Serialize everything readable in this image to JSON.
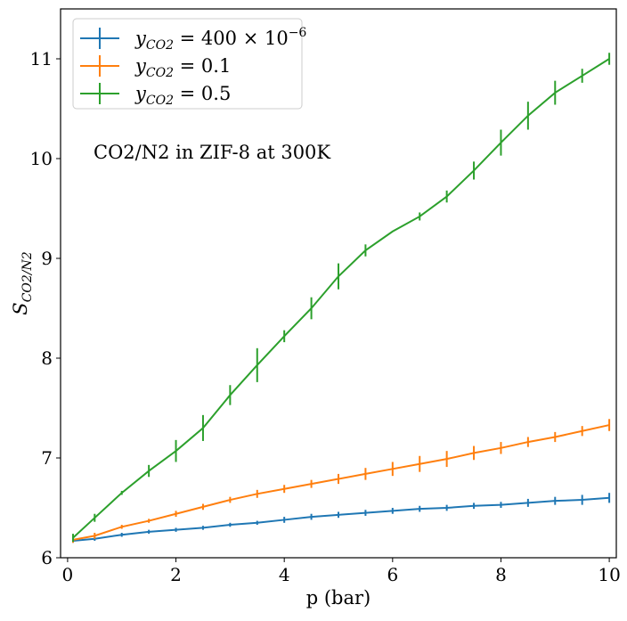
{
  "chart_data": {
    "type": "line",
    "title": "",
    "annotation": "CO2/N2 in ZIF-8 at 300K",
    "xlabel": "p (bar)",
    "ylabel_main": "S",
    "ylabel_sub": "CO2/N2",
    "xlim": [
      -0.13,
      10.13
    ],
    "ylim": [
      6,
      11.5
    ],
    "xticks": [
      0,
      2,
      4,
      6,
      8,
      10
    ],
    "yticks": [
      6,
      7,
      8,
      9,
      10,
      11
    ],
    "grid": false,
    "legend_position": "top-left",
    "x": [
      0.1,
      0.5,
      1,
      1.5,
      2,
      2.5,
      3,
      3.5,
      4,
      4.5,
      5,
      5.5,
      6,
      6.5,
      7,
      7.5,
      8,
      8.5,
      9,
      9.5,
      10
    ],
    "series": [
      {
        "name_var": "y",
        "name_sub": "CO2",
        "name_val": " = 400 × 10",
        "name_exp": "−6",
        "color": "#1f77b4",
        "values": [
          6.17,
          6.19,
          6.23,
          6.26,
          6.28,
          6.3,
          6.33,
          6.35,
          6.38,
          6.41,
          6.43,
          6.45,
          6.47,
          6.49,
          6.5,
          6.52,
          6.53,
          6.55,
          6.57,
          6.58,
          6.6
        ],
        "errors": [
          0.02,
          0.02,
          0.02,
          0.02,
          0.02,
          0.02,
          0.02,
          0.02,
          0.03,
          0.03,
          0.03,
          0.03,
          0.03,
          0.03,
          0.03,
          0.03,
          0.03,
          0.04,
          0.04,
          0.05,
          0.05
        ]
      },
      {
        "name_var": "y",
        "name_sub": "CO2",
        "name_val": " = 0.1",
        "name_exp": "",
        "color": "#ff7f0e",
        "values": [
          6.18,
          6.22,
          6.31,
          6.37,
          6.44,
          6.51,
          6.58,
          6.64,
          6.69,
          6.74,
          6.79,
          6.84,
          6.89,
          6.94,
          6.99,
          7.05,
          7.1,
          7.16,
          7.21,
          7.27,
          7.33
        ],
        "errors": [
          0.03,
          0.03,
          0.02,
          0.02,
          0.03,
          0.03,
          0.03,
          0.04,
          0.04,
          0.04,
          0.05,
          0.06,
          0.07,
          0.08,
          0.08,
          0.07,
          0.06,
          0.05,
          0.05,
          0.05,
          0.06
        ]
      },
      {
        "name_var": "y",
        "name_sub": "CO2",
        "name_val": " = 0.5",
        "name_exp": "",
        "color": "#2ca02c",
        "values": [
          6.2,
          6.4,
          6.65,
          6.87,
          7.07,
          7.3,
          7.63,
          7.93,
          8.22,
          8.5,
          8.82,
          9.08,
          9.27,
          9.42,
          9.62,
          9.88,
          10.16,
          10.43,
          10.66,
          10.83,
          11.0
        ],
        "errors": [
          0.04,
          0.04,
          0.02,
          0.06,
          0.11,
          0.13,
          0.1,
          0.17,
          0.06,
          0.11,
          0.13,
          0.06,
          0,
          0.04,
          0.06,
          0.09,
          0.13,
          0.14,
          0.12,
          0.07,
          0.06
        ]
      }
    ]
  }
}
